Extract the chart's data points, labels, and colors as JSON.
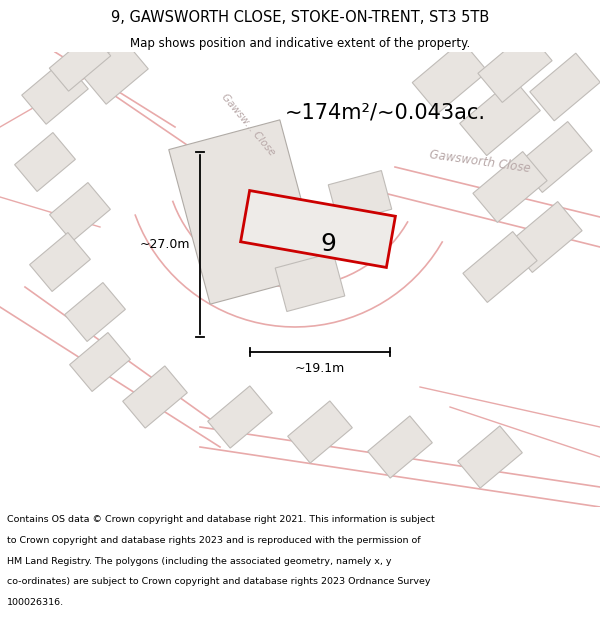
{
  "title": "9, GAWSWORTH CLOSE, STOKE-ON-TRENT, ST3 5TB",
  "subtitle": "Map shows position and indicative extent of the property.",
  "area_text": "~174m²/~0.043ac.",
  "dim_width": "~19.1m",
  "dim_height": "~27.0m",
  "footer_lines": [
    "Contains OS data © Crown copyright and database right 2021. This information is subject",
    "to Crown copyright and database rights 2023 and is reproduced with the permission of",
    "HM Land Registry. The polygons (including the associated geometry, namely x, y",
    "co-ordinates) are subject to Crown copyright and database rights 2023 Ordnance Survey",
    "100026316."
  ],
  "bg_color": "#ffffff",
  "map_bg": "#f8f6f4",
  "road_line_color": "#e8aaaa",
  "plot_fill": "#eeebe8",
  "plot_outline": "#cc0000",
  "other_plots_fill": "#e8e4e0",
  "other_plots_outline": "#c0bcb8",
  "road_label_color": "#b8a8a8",
  "label_number": "9"
}
